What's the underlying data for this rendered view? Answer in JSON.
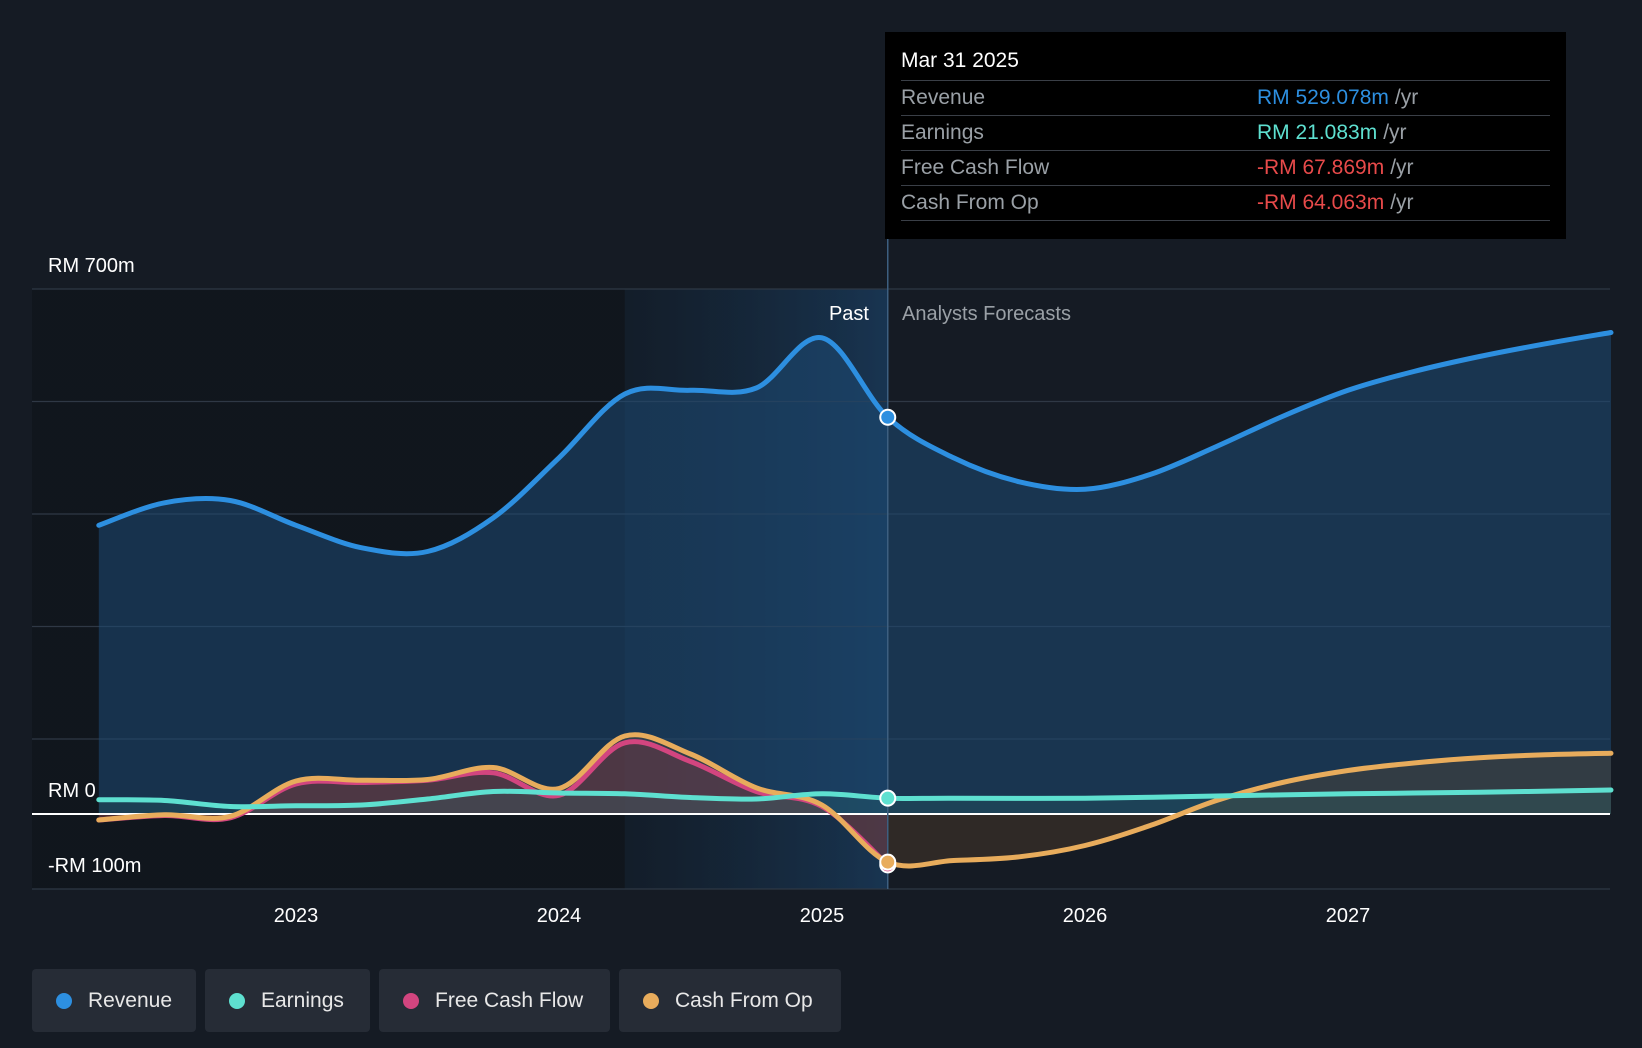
{
  "chart_data": {
    "type": "area",
    "y_unit": "RM",
    "ylim": [
      -100,
      700
    ],
    "y_tick_labels": {
      "top": "RM 700m",
      "zero": "RM 0",
      "bottom": "-RM 100m"
    },
    "x_ticks": [
      "2023",
      "2024",
      "2025",
      "2026",
      "2027"
    ],
    "divider_date": 2025.25,
    "highlight_start": 2024.25,
    "past_label": "Past",
    "forecast_label": "Analysts Forecasts",
    "series": [
      {
        "name": "Revenue",
        "color": "#2d8fe0",
        "fill": "#1d4a74",
        "fill_opacity": 0.55,
        "x": [
          2022.25,
          2022.5,
          2022.75,
          2023.0,
          2023.25,
          2023.5,
          2023.75,
          2024.0,
          2024.25,
          2024.5,
          2024.75,
          2025.0,
          2025.25,
          2025.5,
          2025.75,
          2026.0,
          2026.25,
          2026.5,
          2026.75,
          2027.0,
          2027.25,
          2027.5,
          2027.75,
          2028.0
        ],
        "values": [
          385,
          415,
          418,
          385,
          355,
          350,
          395,
          475,
          560,
          565,
          568,
          635,
          529,
          475,
          443,
          433,
          453,
          490,
          530,
          565,
          590,
          610,
          627,
          642
        ]
      },
      {
        "name": "Earnings",
        "color": "#5ee0d0",
        "fill": "#2b6d6a",
        "fill_opacity": 0.25,
        "x": [
          2022.25,
          2022.5,
          2022.75,
          2023.0,
          2023.25,
          2023.5,
          2023.75,
          2024.0,
          2024.25,
          2024.5,
          2024.75,
          2025.0,
          2025.25,
          2025.5,
          2026.0,
          2026.5,
          2027.0,
          2027.5,
          2028.0
        ],
        "values": [
          19,
          18,
          10,
          11,
          12,
          20,
          30,
          28,
          27,
          22,
          20,
          27,
          21.1,
          21,
          21,
          24,
          27,
          29,
          32
        ]
      },
      {
        "name": "Free Cash Flow",
        "color": "#d2457f",
        "fill": "#8a2c55",
        "fill_opacity": 0.35,
        "x": [
          2022.25,
          2022.5,
          2022.75,
          2023.0,
          2023.25,
          2023.5,
          2023.75,
          2024.0,
          2024.25,
          2024.5,
          2024.75,
          2025.0,
          2025.25
        ],
        "values": [
          -8,
          -2,
          -5,
          40,
          42,
          45,
          55,
          25,
          95,
          70,
          30,
          10,
          -67.9
        ]
      },
      {
        "name": "Cash From Op",
        "color": "#e8ac5c",
        "fill": "#6e4b2a",
        "fill_opacity": 0.3,
        "x": [
          2022.25,
          2022.5,
          2022.75,
          2023.0,
          2023.25,
          2023.5,
          2023.75,
          2024.0,
          2024.25,
          2024.5,
          2024.75,
          2025.0,
          2025.25,
          2025.5,
          2025.75,
          2026.0,
          2026.25,
          2026.5,
          2026.75,
          2027.0,
          2027.25,
          2027.5,
          2027.75,
          2028.0
        ],
        "values": [
          -8,
          -1,
          -3,
          44,
          45,
          46,
          62,
          34,
          104,
          80,
          35,
          12,
          -64.1,
          -62,
          -57,
          -42,
          -15,
          18,
          42,
          58,
          68,
          75,
          79,
          81
        ]
      }
    ]
  },
  "tooltip": {
    "date": "Mar 31 2025",
    "unit": "/yr",
    "rows": [
      {
        "label": "Revenue",
        "value": "RM 529.078m",
        "color": "#2d8fe0"
      },
      {
        "label": "Earnings",
        "value": "RM 21.083m",
        "color": "#5ee0d0"
      },
      {
        "label": "Free Cash Flow",
        "value": "-RM 67.869m",
        "color": "#e84a4a"
      },
      {
        "label": "Cash From Op",
        "value": "-RM 64.063m",
        "color": "#e84a4a"
      }
    ]
  },
  "legend": [
    {
      "label": "Revenue",
      "color": "#2d8fe0"
    },
    {
      "label": "Earnings",
      "color": "#5ee0d0"
    },
    {
      "label": "Free Cash Flow",
      "color": "#d2457f"
    },
    {
      "label": "Cash From Op",
      "color": "#e8ac5c"
    }
  ]
}
